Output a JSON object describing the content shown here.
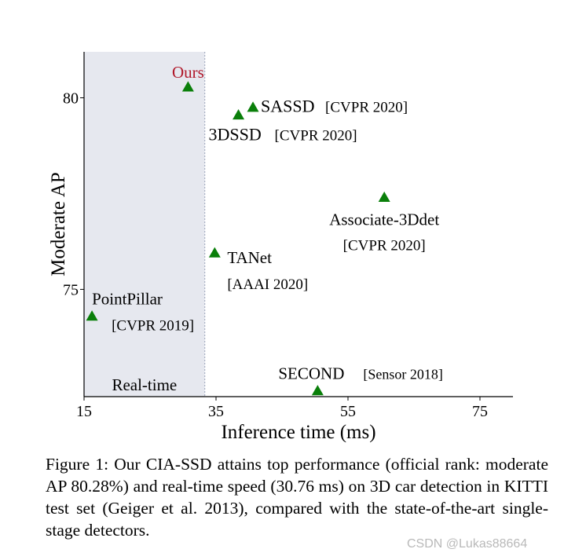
{
  "chart_data": {
    "type": "scatter",
    "xlabel": "Inference time (ms)",
    "ylabel": "Moderate AP",
    "xlim": [
      15,
      80
    ],
    "ylim": [
      72.2,
      81.2
    ],
    "xticks": [
      15,
      35,
      55,
      75
    ],
    "yticks": [
      75,
      80
    ],
    "realtime_region": {
      "x_from": 15,
      "x_to": 33.3,
      "label": "Real-time"
    },
    "points": [
      {
        "name": "Ours",
        "venue": "",
        "x": 30.76,
        "y": 80.28
      },
      {
        "name": "SASSD",
        "venue": "[CVPR 2020]",
        "x": 40.6,
        "y": 79.75
      },
      {
        "name": "3DSSD",
        "venue": "[CVPR 2020]",
        "x": 38.4,
        "y": 79.55
      },
      {
        "name": "Associate-3Ddet",
        "venue": "[CVPR 2020]",
        "x": 60.5,
        "y": 77.4
      },
      {
        "name": "TANet",
        "venue": "[AAAI 2020]",
        "x": 34.8,
        "y": 75.95
      },
      {
        "name": "PointPillar",
        "venue": "[CVPR 2019]",
        "x": 16.2,
        "y": 74.3
      },
      {
        "name": "SECOND",
        "venue": "[Sensor 2018]",
        "x": 50.4,
        "y": 72.35
      }
    ],
    "colors": {
      "marker": "#0a7f0a",
      "ours_label": "#b0182a",
      "shade": "#e6e8ef"
    }
  },
  "caption": {
    "prefix": "Figure 1: Our CIA-SSD attains top performance (official rank: moderate AP ",
    "ap_value": "80.28%",
    "middle": ") and real-time speed (30.76 ms) on 3D car detection in KITTI test set (Geiger et al. 2013), compared with the state-of-the-art single-stage detectors."
  },
  "watermark": "CSDN @Lukas88664"
}
